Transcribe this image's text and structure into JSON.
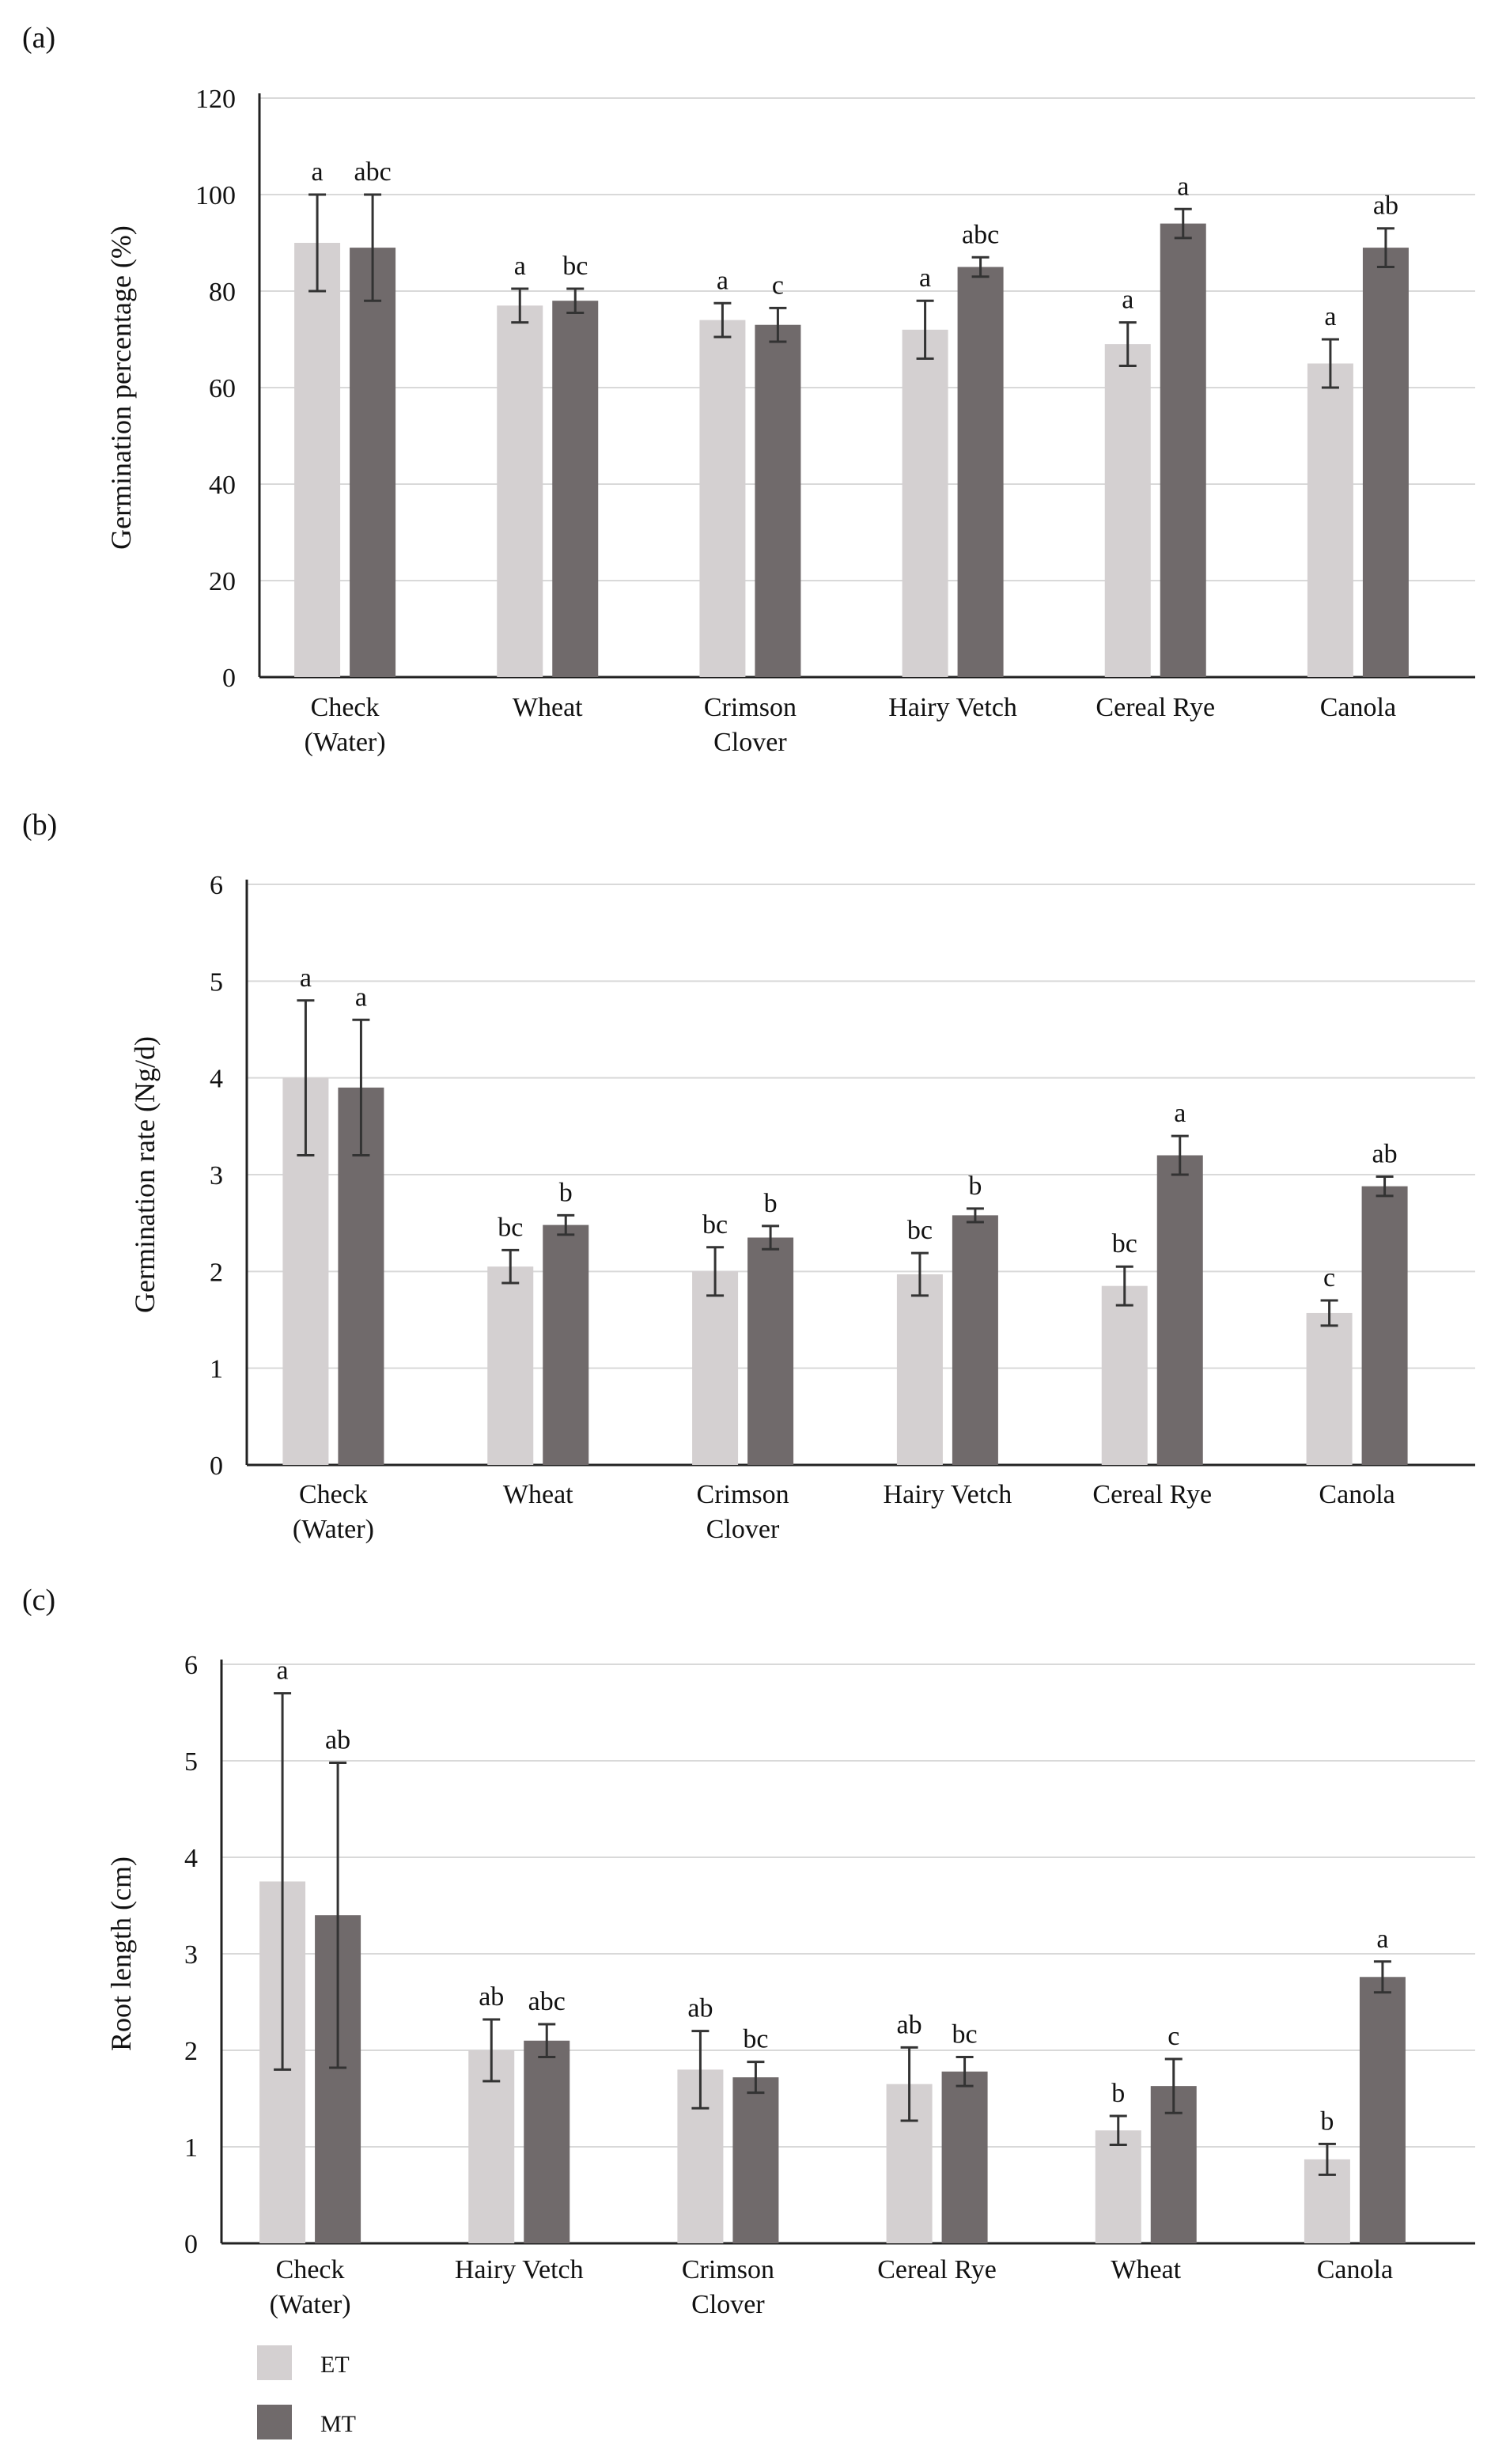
{
  "colors": {
    "ET": "#d4d0d1",
    "MT": "#706a6b",
    "grid": "#d9d9d9",
    "axis": "#222222",
    "errorbar": "#333333"
  },
  "legend": {
    "items": [
      {
        "key": "ET",
        "label": "ET"
      },
      {
        "key": "MT",
        "label": "MT"
      }
    ]
  },
  "chart_data": [
    {
      "type": "bar",
      "panel_label": "(a)",
      "ylabel": "Germination percentage (%)",
      "ylim": [
        0,
        120
      ],
      "yticks": [
        0,
        20,
        40,
        60,
        80,
        100,
        120
      ],
      "grid": true,
      "categories": [
        "Check (Water)",
        "Wheat",
        "Crimson Clover",
        "Hairy Vetch",
        "Cereal Rye",
        "Canola"
      ],
      "category_lines": [
        [
          "Check",
          "(Water)"
        ],
        [
          "Wheat"
        ],
        [
          "Crimson",
          "Clover"
        ],
        [
          "Hairy Vetch"
        ],
        [
          "Cereal Rye"
        ],
        [
          "Canola"
        ]
      ],
      "series": [
        {
          "name": "ET",
          "values": [
            90,
            77,
            74,
            72,
            69,
            65
          ],
          "error": [
            10,
            3.5,
            3.5,
            6,
            4.5,
            5
          ],
          "letters": [
            "a",
            "a",
            "a",
            "a",
            "a",
            "a"
          ]
        },
        {
          "name": "MT",
          "values": [
            89,
            78,
            73,
            85,
            94,
            89
          ],
          "error": [
            11,
            2.5,
            3.5,
            2,
            3,
            4
          ],
          "letters": [
            "abc",
            "bc",
            "c",
            "abc",
            "a",
            "ab"
          ]
        }
      ]
    },
    {
      "type": "bar",
      "panel_label": "(b)",
      "ylabel": "Germination rate (Ng/d)",
      "ylim": [
        0,
        6
      ],
      "yticks": [
        0,
        1,
        2,
        3,
        4,
        5,
        6
      ],
      "grid": true,
      "categories": [
        "Check (Water)",
        "Wheat",
        "Crimson Clover",
        "Hairy Vetch",
        "Cereal Rye",
        "Canola"
      ],
      "category_lines": [
        [
          "Check",
          "(Water)"
        ],
        [
          "Wheat"
        ],
        [
          "Crimson",
          "Clover"
        ],
        [
          "Hairy Vetch"
        ],
        [
          "Cereal Rye"
        ],
        [
          "Canola"
        ]
      ],
      "series": [
        {
          "name": "ET",
          "values": [
            4.0,
            2.05,
            2.0,
            1.97,
            1.85,
            1.57
          ],
          "error": [
            0.8,
            0.17,
            0.25,
            0.22,
            0.2,
            0.13
          ],
          "letters": [
            "a",
            "bc",
            "bc",
            "bc",
            "bc",
            "c"
          ]
        },
        {
          "name": "MT",
          "values": [
            3.9,
            2.48,
            2.35,
            2.58,
            3.2,
            2.88
          ],
          "error": [
            0.7,
            0.1,
            0.12,
            0.07,
            0.2,
            0.1
          ],
          "letters": [
            "a",
            "b",
            "b",
            "b",
            "a",
            "ab"
          ]
        }
      ]
    },
    {
      "type": "bar",
      "panel_label": "(c)",
      "ylabel": "Root length (cm)",
      "ylim": [
        0,
        6
      ],
      "yticks": [
        0,
        1,
        2,
        3,
        4,
        5,
        6
      ],
      "grid": true,
      "categories": [
        "Check (Water)",
        "Hairy Vetch",
        "Crimson Clover",
        "Cereal Rye",
        "Wheat",
        "Canola"
      ],
      "category_lines": [
        [
          "Check",
          "(Water)"
        ],
        [
          "Hairy Vetch"
        ],
        [
          "Crimson",
          "Clover"
        ],
        [
          "Cereal Rye"
        ],
        [
          "Wheat"
        ],
        [
          "Canola"
        ]
      ],
      "series": [
        {
          "name": "ET",
          "values": [
            3.75,
            2.0,
            1.8,
            1.65,
            1.17,
            0.87
          ],
          "error": [
            1.95,
            0.32,
            0.4,
            0.38,
            0.15,
            0.16
          ],
          "letters": [
            "a",
            "ab",
            "ab",
            "ab",
            "b",
            "b"
          ]
        },
        {
          "name": "MT",
          "values": [
            3.4,
            2.1,
            1.72,
            1.78,
            1.63,
            2.76
          ],
          "error": [
            1.58,
            0.17,
            0.16,
            0.15,
            0.28,
            0.16
          ],
          "letters": [
            "ab",
            "abc",
            "bc",
            "bc",
            "c",
            "a"
          ]
        }
      ]
    }
  ]
}
